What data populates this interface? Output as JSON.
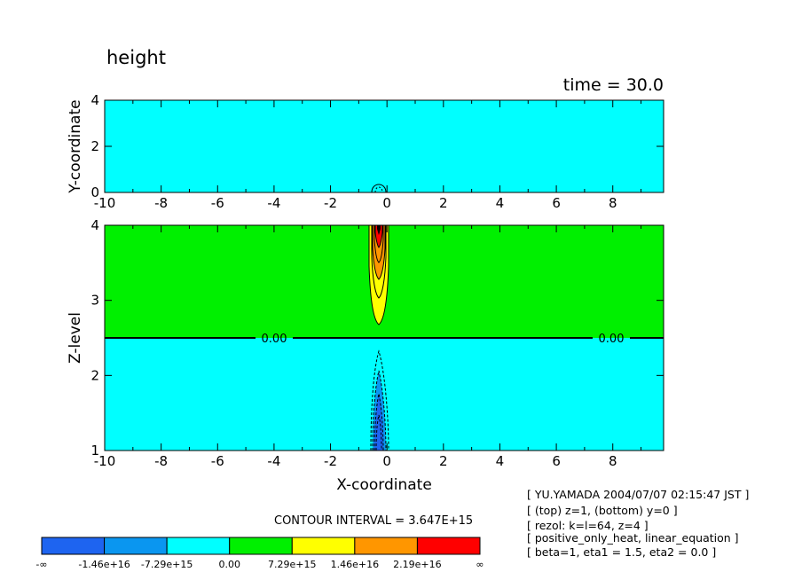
{
  "chart_data": {
    "type": "contour",
    "title": "height",
    "time_label": "time = 30.0",
    "top_panel": {
      "ylabel": "Y-coordinate",
      "xlim": [
        -10,
        9.8
      ],
      "ylim": [
        0,
        4
      ],
      "x_ticks": [
        "-10",
        "-8",
        "-6",
        "-4",
        "-2",
        "0",
        "2",
        "4",
        "6",
        "8"
      ],
      "y_ticks": [
        "0",
        "2",
        "4"
      ]
    },
    "bottom_panel": {
      "ylabel": "Z-level",
      "xlabel": "X-coordinate",
      "xlim": [
        -10,
        9.8
      ],
      "ylim": [
        1,
        4
      ],
      "x_ticks": [
        "-10",
        "-8",
        "-6",
        "-4",
        "-2",
        "0",
        "2",
        "4",
        "6",
        "8"
      ],
      "y_ticks": [
        "1",
        "2",
        "3",
        "4"
      ],
      "zero_line_level": 2.5,
      "contour_labels": [
        "0.00",
        "0.00"
      ]
    },
    "contour_interval": "CONTOUR INTERVAL = 3.647E+15",
    "colorbar": {
      "colors": [
        "#1e64f0",
        "#0a96f0",
        "#00ffff",
        "#00f000",
        "#ffff00",
        "#ff9600",
        "#ff0000"
      ],
      "labels": [
        "-∞",
        "-1.46e+16",
        "-7.29e+15",
        "0.00",
        "7.29e+15",
        "1.46e+16",
        "2.19e+16",
        "∞"
      ]
    }
  },
  "info_lines": [
    "[ YU.YAMADA 2004/07/07 02:15:47 JST ]",
    "[ (top) z=1, (bottom) y=0 ]",
    "[ rezol: k=l=64, z=4 ]",
    "[ positive_only_heat, linear_equation ]",
    "[ beta=1, eta1 = 1.5, eta2 = 0.0 ]"
  ]
}
